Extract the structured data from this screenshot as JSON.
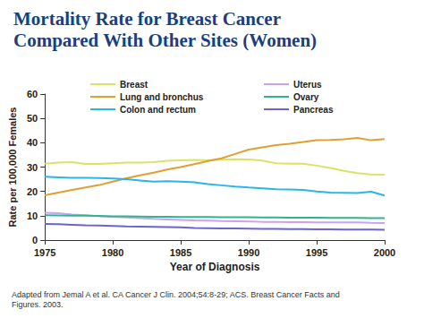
{
  "chart_data": {
    "type": "line",
    "title": "Mortality Rate for Breast Cancer Compared With Other Sites (Women)",
    "footnote": "Adapted from Jemal A et al. CA Cancer J Clin. 2004;54:8-29; ACS. Breast Cancer Facts and Figures. 2003.",
    "x_label": "Year of Diagnosis",
    "y_label": "Rate per 100,000 Females",
    "x": [
      1975,
      1976,
      1977,
      1978,
      1979,
      1980,
      1981,
      1982,
      1983,
      1984,
      1985,
      1986,
      1987,
      1988,
      1989,
      1990,
      1991,
      1992,
      1993,
      1994,
      1995,
      1996,
      1997,
      1998,
      1999,
      2000
    ],
    "series": [
      {
        "name": "Breast",
        "color": "#d8e36a",
        "values": [
          31.4,
          31.8,
          32.0,
          31.3,
          31.3,
          31.6,
          31.8,
          31.8,
          32.0,
          32.6,
          32.8,
          32.9,
          32.8,
          33.0,
          33.2,
          33.1,
          32.7,
          31.6,
          31.4,
          31.4,
          30.6,
          29.6,
          28.4,
          27.5,
          27.0,
          26.9
        ]
      },
      {
        "name": "Lung and bronchus",
        "color": "#e0a030",
        "values": [
          18.4,
          19.5,
          20.6,
          21.6,
          22.6,
          24.0,
          25.4,
          26.6,
          27.7,
          29.0,
          30.0,
          31.2,
          32.5,
          33.6,
          35.4,
          37.2,
          38.1,
          39.0,
          39.6,
          40.3,
          41.0,
          41.1,
          41.4,
          42.0,
          41.0,
          41.5
        ]
      },
      {
        "name": "Colon and rectum",
        "color": "#29b6e6",
        "values": [
          26.0,
          25.8,
          25.6,
          25.6,
          25.5,
          25.3,
          25.0,
          24.5,
          24.0,
          24.2,
          24.0,
          23.7,
          23.0,
          22.5,
          22.0,
          21.6,
          21.3,
          20.9,
          20.8,
          20.6,
          20.0,
          19.5,
          19.4,
          19.3,
          19.9,
          18.3
        ]
      },
      {
        "name": "Uterus",
        "color": "#c9a2f0",
        "values": [
          11.2,
          11.0,
          10.5,
          10.2,
          9.8,
          9.6,
          9.3,
          9.0,
          8.7,
          8.5,
          8.3,
          8.1,
          8.0,
          7.8,
          7.7,
          7.6,
          7.5,
          7.5,
          7.4,
          7.4,
          7.3,
          7.3,
          7.3,
          7.3,
          7.1,
          7.0
        ]
      },
      {
        "name": "Ovary",
        "color": "#2fb48c",
        "values": [
          10.2,
          10.1,
          10.0,
          10.0,
          9.9,
          9.8,
          9.8,
          9.7,
          9.6,
          9.6,
          9.5,
          9.5,
          9.5,
          9.4,
          9.4,
          9.4,
          9.3,
          9.3,
          9.2,
          9.2,
          9.2,
          9.1,
          9.1,
          9.1,
          9.0,
          9.0
        ]
      },
      {
        "name": "Pancreas",
        "color": "#6a64d2",
        "values": [
          6.6,
          6.5,
          6.3,
          6.1,
          6.0,
          5.8,
          5.6,
          5.5,
          5.4,
          5.3,
          5.2,
          5.0,
          4.9,
          4.8,
          4.8,
          4.7,
          4.6,
          4.6,
          4.5,
          4.5,
          4.4,
          4.4,
          4.3,
          4.3,
          4.3,
          4.2
        ]
      }
    ],
    "xlim": [
      1975,
      2000
    ],
    "xticks": [
      1975,
      1980,
      1985,
      1990,
      1995,
      2000
    ],
    "ylim": [
      0,
      60
    ],
    "yticks": [
      0,
      10,
      20,
      30,
      40,
      50,
      60
    ],
    "grid": false,
    "legend": "top"
  }
}
